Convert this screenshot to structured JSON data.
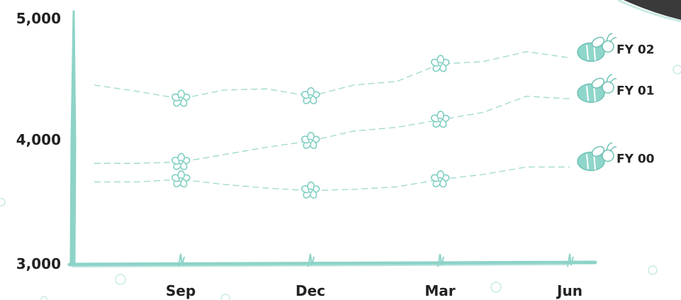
{
  "chart_data": {
    "type": "line",
    "title": "",
    "xlabel": "",
    "ylabel": "",
    "ylim": [
      3000,
      5000
    ],
    "y_ticks": [
      {
        "value": 3000,
        "label": "3,000"
      },
      {
        "value": 4000,
        "label": "4,000"
      },
      {
        "value": 5000,
        "label": "5,000"
      }
    ],
    "x_ticks": [
      {
        "position": 3,
        "label": "Sep"
      },
      {
        "position": 6,
        "label": "Dec"
      },
      {
        "position": 9,
        "label": "Mar"
      },
      {
        "position": 12,
        "label": "Jun"
      }
    ],
    "x": [
      1,
      2,
      3,
      4,
      5,
      6,
      7,
      8,
      9,
      10,
      11,
      12
    ],
    "grid": false,
    "legend": "inline labels at line ends",
    "series": [
      {
        "name": "FY 00",
        "values": [
          3660,
          3660,
          3680,
          3640,
          3610,
          3590,
          3600,
          3620,
          3680,
          3720,
          3780,
          3780
        ]
      },
      {
        "name": "FY 01",
        "values": [
          3810,
          3810,
          3820,
          3880,
          3940,
          3990,
          4070,
          4100,
          4160,
          4220,
          4350,
          4330
        ]
      },
      {
        "name": "FY 02",
        "values": [
          4440,
          4390,
          4330,
          4400,
          4410,
          4350,
          4440,
          4470,
          4610,
          4630,
          4710,
          4660
        ]
      }
    ],
    "colors": {
      "axis": "#8dd3c7",
      "line": "#9fd8cf",
      "marker": "#7fcfc2",
      "label": "#222222"
    },
    "marker_icon": "flower-icon",
    "series_icon": "bee-icon"
  }
}
